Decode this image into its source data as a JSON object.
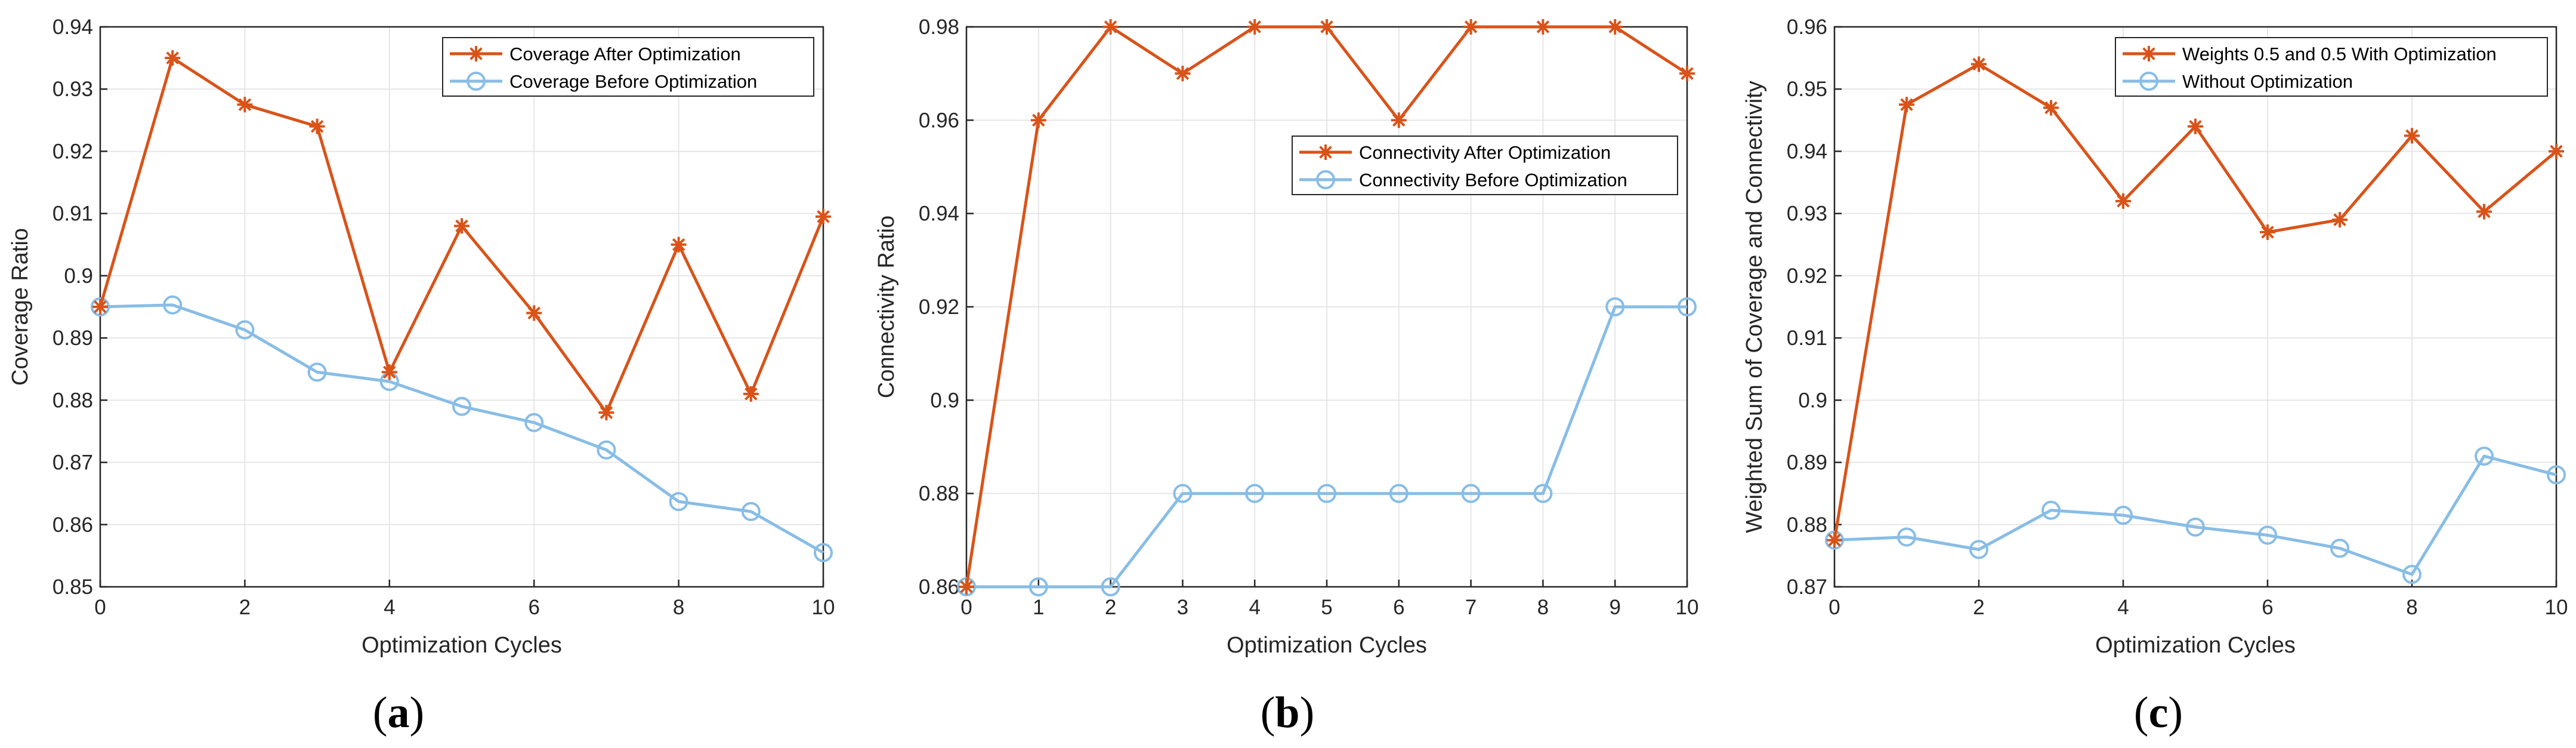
{
  "chart_data": [
    {
      "type": "line",
      "caption": {
        "open": "(",
        "letter": "a",
        "close": ")"
      },
      "xlabel": "Optimization Cycles",
      "ylabel": "Coverage Ratio",
      "xlim": [
        0,
        10
      ],
      "ylim": [
        0.85,
        0.94
      ],
      "xticks": [
        0,
        2,
        4,
        6,
        8,
        10
      ],
      "xtick_labels": [
        "0",
        "2",
        "4",
        "6",
        "8",
        "10"
      ],
      "yticks": [
        0.85,
        0.86,
        0.87,
        0.88,
        0.89,
        0.9,
        0.91,
        0.92,
        0.93,
        0.94
      ],
      "ytick_labels": [
        "0.85",
        "0.86",
        "0.87",
        "0.88",
        "0.89",
        "0.9",
        "0.91",
        "0.92",
        "0.93",
        "0.94"
      ],
      "grid": true,
      "legend_position": "top-right",
      "x": [
        0,
        1,
        2,
        3,
        4,
        5,
        6,
        7,
        8,
        9,
        10
      ],
      "series": [
        {
          "name": "Coverage After Optimization",
          "color": "#d95319",
          "marker": "asterisk",
          "values": [
            0.895,
            0.935,
            0.9275,
            0.924,
            0.8845,
            0.908,
            0.894,
            0.878,
            0.905,
            0.881,
            0.9095
          ]
        },
        {
          "name": "Coverage Before Optimization",
          "color": "#88bde6",
          "marker": "circle",
          "values": [
            0.895,
            0.8953,
            0.8913,
            0.8845,
            0.883,
            0.879,
            0.8764,
            0.872,
            0.8637,
            0.8621,
            0.8555
          ]
        }
      ]
    },
    {
      "type": "line",
      "caption": {
        "open": "(",
        "letter": "b",
        "close": ")"
      },
      "xlabel": "Optimization Cycles",
      "ylabel": "Connectivity Ratio",
      "xlim": [
        0,
        10
      ],
      "ylim": [
        0.86,
        0.98
      ],
      "xticks": [
        0,
        1,
        2,
        3,
        4,
        5,
        6,
        7,
        8,
        9,
        10
      ],
      "xtick_labels": [
        "0",
        "1",
        "2",
        "3",
        "4",
        "5",
        "6",
        "7",
        "8",
        "9",
        "10"
      ],
      "yticks": [
        0.86,
        0.88,
        0.9,
        0.92,
        0.94,
        0.96,
        0.98
      ],
      "ytick_labels": [
        "0.86",
        "0.88",
        "0.9",
        "0.92",
        "0.94",
        "0.96",
        "0.98"
      ],
      "grid": true,
      "legend_position": "upper-right",
      "x": [
        0,
        1,
        2,
        3,
        4,
        5,
        6,
        7,
        8,
        9,
        10
      ],
      "series": [
        {
          "name": "Connectivity After Optimization",
          "color": "#d95319",
          "marker": "asterisk",
          "values": [
            0.86,
            0.96,
            0.98,
            0.97,
            0.98,
            0.98,
            0.96,
            0.98,
            0.98,
            0.98,
            0.97
          ]
        },
        {
          "name": "Connectivity Before Optimization",
          "color": "#88bde6",
          "marker": "circle",
          "values": [
            0.86,
            0.86,
            0.86,
            0.88,
            0.88,
            0.88,
            0.88,
            0.88,
            0.88,
            0.92,
            0.92
          ]
        }
      ]
    },
    {
      "type": "line",
      "caption": {
        "open": "(",
        "letter": "c",
        "close": ")"
      },
      "xlabel": "Optimization Cycles",
      "ylabel": "Weighted Sum of Coverage and Connectivity",
      "xlim": [
        0,
        10
      ],
      "ylim": [
        0.87,
        0.96
      ],
      "xticks": [
        0,
        2,
        4,
        6,
        8,
        10
      ],
      "xtick_labels": [
        "0",
        "2",
        "4",
        "6",
        "8",
        "10"
      ],
      "yticks": [
        0.87,
        0.88,
        0.89,
        0.9,
        0.91,
        0.92,
        0.93,
        0.94,
        0.95,
        0.96
      ],
      "ytick_labels": [
        "0.87",
        "0.88",
        "0.89",
        "0.9",
        "0.91",
        "0.92",
        "0.93",
        "0.94",
        "0.95",
        "0.96"
      ],
      "grid": true,
      "legend_position": "top-right",
      "x": [
        0,
        1,
        2,
        3,
        4,
        5,
        6,
        7,
        8,
        9,
        10
      ],
      "series": [
        {
          "name": "Weights 0.5 and 0.5 With Optimization",
          "color": "#d95319",
          "marker": "asterisk",
          "values": [
            0.8775,
            0.9475,
            0.954,
            0.947,
            0.932,
            0.944,
            0.927,
            0.929,
            0.9425,
            0.9303,
            0.94
          ]
        },
        {
          "name": "Without Optimization",
          "color": "#88bde6",
          "marker": "circle",
          "values": [
            0.8775,
            0.878,
            0.876,
            0.8823,
            0.8815,
            0.8796,
            0.8783,
            0.8762,
            0.872,
            0.891,
            0.888
          ]
        }
      ]
    }
  ]
}
